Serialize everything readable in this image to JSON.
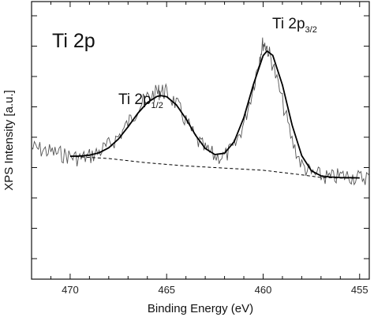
{
  "chart_data": {
    "type": "line",
    "title": "Ti 2p",
    "xlabel": "Binding Energy (eV)",
    "ylabel": "XPS Intensity [a.u.]",
    "xlim": [
      472,
      454.5
    ],
    "x_reversed": true,
    "x_ticks": [
      470,
      465,
      460,
      455
    ],
    "ylim": [
      0,
      1
    ],
    "y_tick_labels_shown": false,
    "grid": false,
    "legend": "none",
    "annotations": [
      {
        "base": "Ti 2p",
        "sub": "3/2",
        "x": 459.2,
        "y": 0.965
      },
      {
        "base": "Ti 2p",
        "sub": "1/2",
        "x": 465.0,
        "y": 0.745
      }
    ],
    "colors": {
      "raw": "#555555",
      "fit": "#000000",
      "background": "#000000"
    },
    "series": [
      {
        "style": "noisy",
        "x": [
          472.0,
          471.5,
          471.0,
          470.5,
          470.0,
          469.5,
          469.0,
          468.5,
          468.0,
          467.5,
          467.0,
          466.5,
          466.0,
          465.5,
          465.3,
          465.0,
          464.5,
          464.0,
          463.5,
          463.0,
          462.5,
          462.0,
          461.5,
          461.0,
          460.5,
          460.2,
          460.0,
          459.8,
          459.5,
          459.0,
          458.5,
          458.0,
          457.5,
          457.0,
          456.5,
          456.0,
          455.5,
          455.0,
          454.5
        ],
        "y": [
          0.44,
          0.43,
          0.42,
          0.41,
          0.4,
          0.39,
          0.4,
          0.42,
          0.45,
          0.49,
          0.55,
          0.62,
          0.67,
          0.69,
          0.7,
          0.69,
          0.64,
          0.56,
          0.48,
          0.43,
          0.4,
          0.4,
          0.44,
          0.55,
          0.72,
          0.85,
          0.92,
          0.9,
          0.82,
          0.65,
          0.47,
          0.36,
          0.32,
          0.31,
          0.3,
          0.31,
          0.31,
          0.3,
          0.31
        ]
      },
      {
        "style": "solid",
        "x": [
          470.0,
          469.5,
          469.0,
          468.5,
          468.0,
          467.5,
          467.0,
          466.5,
          466.0,
          465.5,
          465.3,
          465.0,
          464.5,
          464.0,
          463.5,
          463.0,
          462.5,
          462.0,
          461.5,
          461.0,
          460.5,
          460.0,
          459.8,
          459.5,
          459.0,
          458.5,
          458.0,
          457.5,
          457.0,
          456.5,
          456.0,
          455.5,
          455.0
        ],
        "y": [
          0.4,
          0.401,
          0.405,
          0.416,
          0.439,
          0.479,
          0.535,
          0.596,
          0.646,
          0.674,
          0.678,
          0.673,
          0.636,
          0.572,
          0.496,
          0.436,
          0.408,
          0.414,
          0.467,
          0.577,
          0.73,
          0.861,
          0.882,
          0.862,
          0.727,
          0.543,
          0.403,
          0.334,
          0.31,
          0.305,
          0.303,
          0.302,
          0.301
        ]
      },
      {
        "style": "dashed",
        "x": [
          470.0,
          468.0,
          466.0,
          464.0,
          462.0,
          460.0,
          458.0,
          457.0,
          456.0,
          455.0
        ],
        "y": [
          0.4,
          0.39,
          0.37,
          0.356,
          0.346,
          0.336,
          0.315,
          0.303,
          0.3,
          0.3
        ]
      }
    ]
  }
}
